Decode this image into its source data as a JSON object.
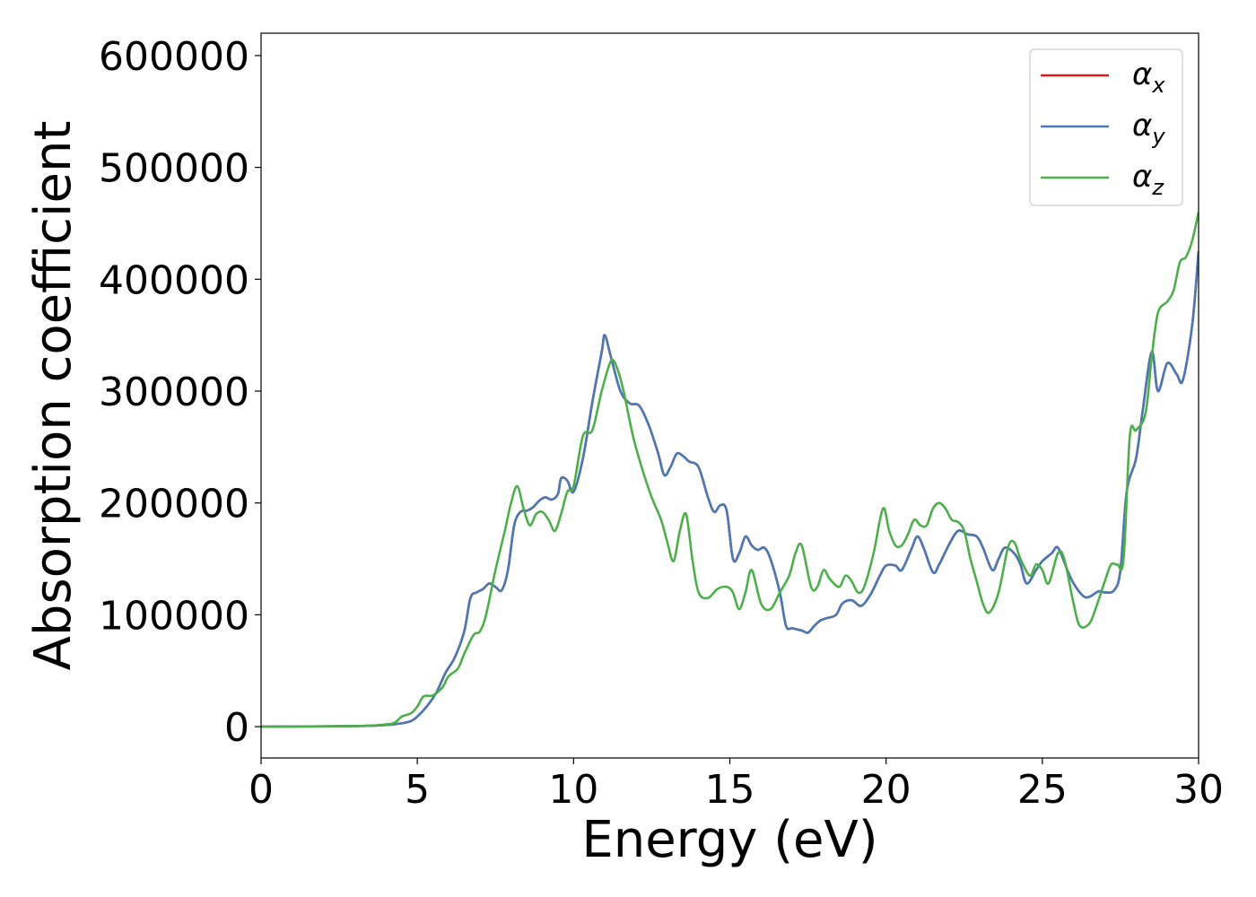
{
  "chart_data": {
    "type": "line",
    "title": "",
    "xlabel": "Energy (eV)",
    "ylabel": "Absorption coefficient",
    "xlim": [
      0,
      30
    ],
    "ylim": [
      -28000,
      620000
    ],
    "xticks": [
      0,
      5,
      10,
      15,
      20,
      25,
      30
    ],
    "yticks": [
      0,
      100000,
      200000,
      300000,
      400000,
      500000,
      600000
    ],
    "xtick_labels": [
      "0",
      "5",
      "10",
      "15",
      "20",
      "25",
      "30"
    ],
    "ytick_labels": [
      "0",
      "100000",
      "200000",
      "300000",
      "400000",
      "500000",
      "600000"
    ],
    "grid": false,
    "legend_position": "top-right",
    "series": [
      {
        "name": "αx",
        "name_base": "α",
        "name_sub": "x",
        "color": "#e41a1c",
        "x": [
          0,
          3,
          4,
          4.5,
          4.8,
          5.0,
          5.3,
          5.6,
          5.9,
          6.2,
          6.5,
          6.7,
          6.9,
          7.1,
          7.3,
          7.5,
          7.7,
          7.9,
          8.1,
          8.3,
          8.5,
          8.7,
          8.9,
          9.1,
          9.3,
          9.5,
          9.6,
          9.8,
          10.0,
          10.3,
          10.6,
          10.9,
          11.0,
          11.2,
          11.5,
          11.8,
          12.1,
          12.4,
          12.7,
          12.9,
          13.1,
          13.3,
          13.5,
          13.7,
          14.0,
          14.3,
          14.5,
          14.7,
          14.9,
          15.1,
          15.3,
          15.5,
          15.7,
          15.9,
          16.1,
          16.3,
          16.6,
          16.8,
          17.0,
          17.3,
          17.5,
          17.7,
          17.9,
          18.1,
          18.4,
          18.6,
          18.9,
          19.2,
          19.5,
          19.8,
          20.0,
          20.3,
          20.5,
          20.8,
          21.0,
          21.2,
          21.5,
          21.7,
          22.0,
          22.3,
          22.6,
          22.9,
          23.1,
          23.4,
          23.6,
          23.8,
          24.1,
          24.3,
          24.5,
          24.8,
          25.0,
          25.3,
          25.5,
          25.8,
          26.0,
          26.3,
          26.5,
          26.8,
          27.0,
          27.3,
          27.5,
          27.7,
          28.0,
          28.2,
          28.5,
          28.7,
          29.0,
          29.3,
          29.5,
          29.8,
          30.0
        ],
        "y": [
          0,
          500,
          1500,
          3000,
          5000,
          9000,
          18000,
          30000,
          48000,
          62000,
          85000,
          115000,
          120000,
          123000,
          128000,
          125000,
          122000,
          140000,
          180000,
          192000,
          193000,
          196000,
          202000,
          205000,
          203000,
          208000,
          222000,
          220000,
          210000,
          240000,
          290000,
          335000,
          350000,
          330000,
          300000,
          289000,
          287000,
          270000,
          245000,
          225000,
          232000,
          244000,
          242000,
          237000,
          232000,
          205000,
          192000,
          198000,
          193000,
          150000,
          155000,
          170000,
          162000,
          158000,
          160000,
          150000,
          120000,
          90000,
          88000,
          86000,
          84000,
          90000,
          95000,
          97000,
          100000,
          110000,
          113000,
          108000,
          118000,
          135000,
          144000,
          144000,
          140000,
          158000,
          170000,
          160000,
          138000,
          145000,
          162000,
          175000,
          172000,
          170000,
          160000,
          140000,
          150000,
          160000,
          155000,
          145000,
          128000,
          140000,
          148000,
          155000,
          160000,
          140000,
          128000,
          117000,
          116000,
          121000,
          120000,
          122000,
          140000,
          210000,
          240000,
          280000,
          335000,
          300000,
          325000,
          315000,
          310000,
          360000,
          425000
        ]
      },
      {
        "name": "αy",
        "name_base": "α",
        "name_sub": "y",
        "color": "#4a7ab5",
        "x": [
          0,
          3,
          4,
          4.5,
          4.8,
          5.0,
          5.3,
          5.6,
          5.9,
          6.2,
          6.5,
          6.7,
          6.9,
          7.1,
          7.3,
          7.5,
          7.7,
          7.9,
          8.1,
          8.3,
          8.5,
          8.7,
          8.9,
          9.1,
          9.3,
          9.5,
          9.6,
          9.8,
          10.0,
          10.3,
          10.6,
          10.9,
          11.0,
          11.2,
          11.5,
          11.8,
          12.1,
          12.4,
          12.7,
          12.9,
          13.1,
          13.3,
          13.5,
          13.7,
          14.0,
          14.3,
          14.5,
          14.7,
          14.9,
          15.1,
          15.3,
          15.5,
          15.7,
          15.9,
          16.1,
          16.3,
          16.6,
          16.8,
          17.0,
          17.3,
          17.5,
          17.7,
          17.9,
          18.1,
          18.4,
          18.6,
          18.9,
          19.2,
          19.5,
          19.8,
          20.0,
          20.3,
          20.5,
          20.8,
          21.0,
          21.2,
          21.5,
          21.7,
          22.0,
          22.3,
          22.6,
          22.9,
          23.1,
          23.4,
          23.6,
          23.8,
          24.1,
          24.3,
          24.5,
          24.8,
          25.0,
          25.3,
          25.5,
          25.8,
          26.0,
          26.3,
          26.5,
          26.8,
          27.0,
          27.3,
          27.5,
          27.7,
          28.0,
          28.2,
          28.5,
          28.7,
          29.0,
          29.3,
          29.5,
          29.8,
          30.0
        ],
        "y": [
          0,
          500,
          1500,
          3000,
          5000,
          9000,
          18000,
          30000,
          48000,
          62000,
          85000,
          115000,
          120000,
          123000,
          128000,
          125000,
          122000,
          140000,
          180000,
          192000,
          193000,
          196000,
          202000,
          205000,
          203000,
          208000,
          222000,
          220000,
          210000,
          240000,
          290000,
          335000,
          350000,
          330000,
          300000,
          289000,
          287000,
          270000,
          245000,
          225000,
          232000,
          244000,
          242000,
          237000,
          232000,
          205000,
          192000,
          198000,
          193000,
          150000,
          155000,
          170000,
          162000,
          158000,
          160000,
          150000,
          120000,
          90000,
          88000,
          86000,
          84000,
          90000,
          95000,
          97000,
          100000,
          110000,
          113000,
          108000,
          118000,
          135000,
          144000,
          144000,
          140000,
          158000,
          170000,
          160000,
          138000,
          145000,
          162000,
          175000,
          172000,
          170000,
          160000,
          140000,
          150000,
          160000,
          155000,
          145000,
          128000,
          140000,
          148000,
          155000,
          160000,
          140000,
          128000,
          117000,
          116000,
          121000,
          120000,
          122000,
          140000,
          210000,
          240000,
          280000,
          335000,
          300000,
          325000,
          315000,
          310000,
          360000,
          425000
        ]
      },
      {
        "name": "αz",
        "name_base": "α",
        "name_sub": "z",
        "color": "#4daf4a",
        "x": [
          0,
          3,
          4,
          4.3,
          4.5,
          4.8,
          5.0,
          5.2,
          5.5,
          5.8,
          6.0,
          6.3,
          6.5,
          6.8,
          7.0,
          7.2,
          7.5,
          7.8,
          8.0,
          8.2,
          8.4,
          8.6,
          8.8,
          9.0,
          9.2,
          9.4,
          9.6,
          9.8,
          10.0,
          10.3,
          10.6,
          10.9,
          11.2,
          11.4,
          11.6,
          11.9,
          12.2,
          12.5,
          12.8,
          13.0,
          13.2,
          13.4,
          13.6,
          13.8,
          14.0,
          14.3,
          14.6,
          14.9,
          15.1,
          15.3,
          15.5,
          15.7,
          16.0,
          16.3,
          16.6,
          16.9,
          17.1,
          17.3,
          17.6,
          17.8,
          18.0,
          18.2,
          18.5,
          18.7,
          18.9,
          19.1,
          19.3,
          19.6,
          19.9,
          20.1,
          20.3,
          20.5,
          20.7,
          20.9,
          21.1,
          21.3,
          21.5,
          21.7,
          21.9,
          22.1,
          22.3,
          22.5,
          22.7,
          22.9,
          23.1,
          23.3,
          23.6,
          23.9,
          24.1,
          24.3,
          24.6,
          24.8,
          25.0,
          25.2,
          25.5,
          25.7,
          26.0,
          26.2,
          26.5,
          26.7,
          27.0,
          27.2,
          27.4,
          27.6,
          27.8,
          28.0,
          28.3,
          28.5,
          28.7,
          29.0,
          29.2,
          29.4,
          29.6,
          29.8,
          30.0
        ],
        "y": [
          0,
          500,
          2000,
          4000,
          9000,
          12000,
          18000,
          27000,
          28000,
          35000,
          45000,
          52000,
          65000,
          82000,
          85000,
          100000,
          140000,
          175000,
          200000,
          215000,
          195000,
          180000,
          190000,
          192000,
          185000,
          175000,
          190000,
          210000,
          215000,
          260000,
          265000,
          300000,
          327000,
          320000,
          300000,
          260000,
          230000,
          205000,
          185000,
          165000,
          148000,
          175000,
          190000,
          150000,
          120000,
          115000,
          123000,
          125000,
          120000,
          105000,
          120000,
          140000,
          110000,
          105000,
          120000,
          135000,
          155000,
          162000,
          125000,
          125000,
          140000,
          132000,
          125000,
          135000,
          130000,
          120000,
          125000,
          155000,
          195000,
          175000,
          162000,
          162000,
          172000,
          185000,
          180000,
          180000,
          195000,
          200000,
          195000,
          185000,
          183000,
          175000,
          150000,
          130000,
          110000,
          102000,
          120000,
          160000,
          165000,
          150000,
          135000,
          145000,
          140000,
          128000,
          155000,
          150000,
          110000,
          90000,
          92000,
          105000,
          130000,
          145000,
          145000,
          150000,
          260000,
          265000,
          280000,
          330000,
          370000,
          380000,
          390000,
          415000,
          420000,
          435000,
          460000
        ]
      }
    ]
  }
}
